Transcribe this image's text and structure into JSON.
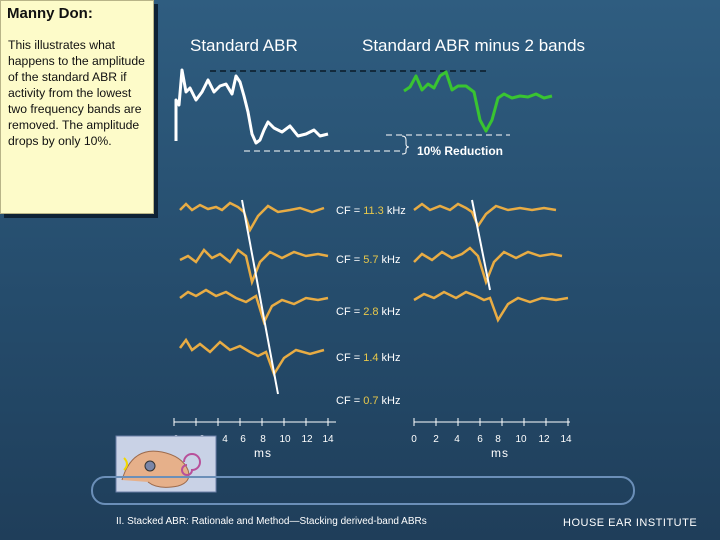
{
  "note": {
    "title": "Manny Don:",
    "body": "This illustrates what happens to the amplitude of the standard ABR if activity from the lowest two frequency bands are removed. The amplitude drops by only 10%."
  },
  "headers": {
    "left": "Standard ABR",
    "right": "Standard ABR minus 2 bands"
  },
  "reduction_label": "10% Reduction",
  "bands": [
    {
      "prefix": "CF = ",
      "value": "11.3",
      "unit": " kHz"
    },
    {
      "prefix": "CF = ",
      "value": "5.7",
      "unit": " kHz"
    },
    {
      "prefix": "CF = ",
      "value": "2.8",
      "unit": " kHz"
    },
    {
      "prefix": "CF = ",
      "value": "1.4",
      "unit": " kHz"
    },
    {
      "prefix": "CF = ",
      "value": "0.7",
      "unit": " kHz"
    }
  ],
  "axes": {
    "ticks": [
      "0",
      "2",
      "4",
      "6",
      "8",
      "10",
      "12",
      "14"
    ],
    "unit": "ms"
  },
  "caption": "II. Stacked ABR: Rationale and Method—Stacking derived-band ABRs",
  "brand": "HOUSE EAR INSTITUTE",
  "colors": {
    "standard_trace": "#ffffff",
    "minus_trace": "#39c431",
    "band_trace": "#e8ac44",
    "note_bg": "#fdfbc9",
    "background": "#2f5d80"
  }
}
